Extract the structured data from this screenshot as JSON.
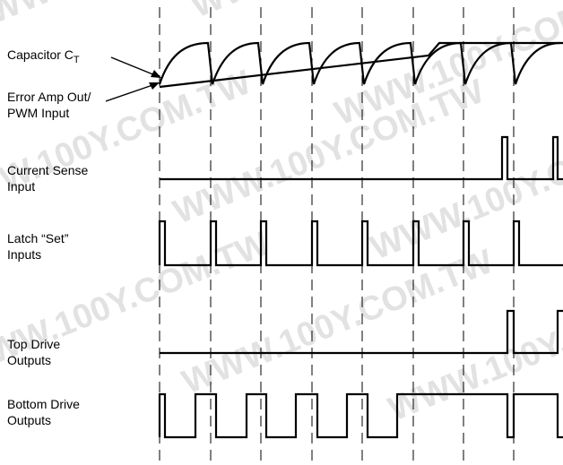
{
  "watermark": {
    "text": "WWW.100Y.COM.TW"
  },
  "labels": {
    "capacitor_main": "Capacitor C",
    "capacitor_sub": "T",
    "error_amp_line1": "Error Amp Out/",
    "error_amp_line2": "PWM Input",
    "current_sense_line1": "Current Sense",
    "current_sense_line2": "Input",
    "latch_line1": "Latch “Set”",
    "latch_line2": "Inputs",
    "top_drive_line1": "Top Drive",
    "top_drive_line2": "Outputs",
    "bottom_drive_line1": "Bottom Drive",
    "bottom_drive_line2": "Outputs"
  },
  "colors": {
    "trace": "#000000",
    "watermark": "#e2e2e2",
    "background": "#ffffff"
  }
}
